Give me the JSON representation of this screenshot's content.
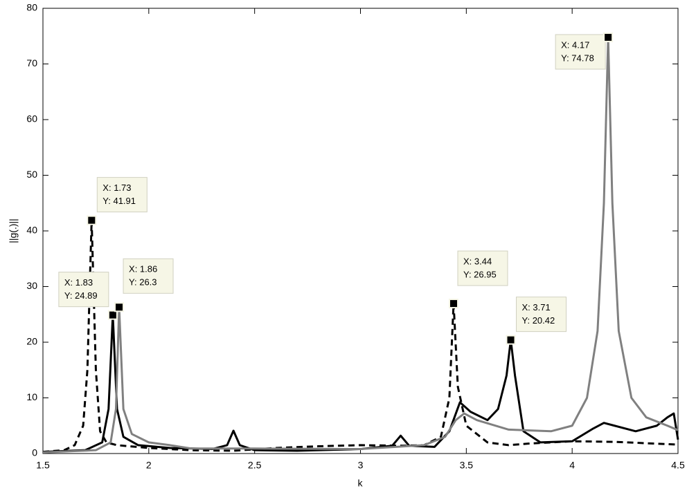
{
  "chart_data": {
    "type": "line",
    "xlabel": "k",
    "ylabel": "||g(.)||",
    "xlim": [
      1.5,
      4.5
    ],
    "xticks": [
      1.5,
      2,
      2.5,
      3,
      3.5,
      4,
      4.5
    ],
    "ylim": [
      0,
      80
    ],
    "yticks": [
      0,
      10,
      20,
      30,
      40,
      50,
      60,
      70,
      80
    ],
    "series": [
      {
        "color": "#000000",
        "dash": true,
        "x": [
          1.5,
          1.6,
          1.65,
          1.69,
          1.71,
          1.73,
          1.75,
          1.77,
          1.8,
          1.85,
          2.0,
          2.2,
          2.4,
          2.6,
          2.8,
          3.0,
          3.2,
          3.3,
          3.38,
          3.42,
          3.44,
          3.46,
          3.5,
          3.6,
          3.7,
          3.8,
          4.0,
          4.2,
          4.5
        ],
        "values": [
          0.3,
          0.6,
          1.5,
          5,
          15,
          41.91,
          15,
          4,
          2,
          1.5,
          1.0,
          0.6,
          0.5,
          1.0,
          1.3,
          1.5,
          1.4,
          1.5,
          3,
          10,
          26.95,
          12,
          5,
          2,
          1.5,
          1.8,
          2.2,
          2.1,
          1.6
        ]
      },
      {
        "color": "#000000",
        "dash": false,
        "x": [
          1.5,
          1.7,
          1.78,
          1.81,
          1.83,
          1.85,
          1.88,
          1.95,
          2.1,
          2.3,
          2.37,
          2.4,
          2.43,
          2.5,
          2.7,
          3.0,
          3.15,
          3.19,
          3.23,
          3.35,
          3.42,
          3.47,
          3.52,
          3.6,
          3.65,
          3.69,
          3.71,
          3.73,
          3.77,
          3.85,
          4.0,
          4.1,
          4.15,
          4.2,
          4.3,
          4.4,
          4.45,
          4.48,
          4.5
        ],
        "values": [
          0.3,
          0.6,
          2,
          8,
          24.89,
          8,
          3,
          1.5,
          1.0,
          0.8,
          1.5,
          4.1,
          1.5,
          0.6,
          0.5,
          0.8,
          1.4,
          3.2,
          1.4,
          1.2,
          4,
          9.2,
          7.5,
          6,
          8,
          14,
          20.42,
          14,
          4,
          2.0,
          2.2,
          4.5,
          5.5,
          5,
          4,
          5,
          6.5,
          7.2,
          2.5
        ]
      },
      {
        "color": "#808080",
        "dash": false,
        "x": [
          1.5,
          1.75,
          1.82,
          1.845,
          1.86,
          1.88,
          1.92,
          2.0,
          2.1,
          2.2,
          2.5,
          3.0,
          3.3,
          3.4,
          3.45,
          3.49,
          3.55,
          3.7,
          3.9,
          4.0,
          4.07,
          4.12,
          4.15,
          4.17,
          4.19,
          4.22,
          4.28,
          4.35,
          4.45,
          4.5
        ],
        "values": [
          0.2,
          0.6,
          2,
          8,
          26.3,
          8,
          3.5,
          2.0,
          1.5,
          0.9,
          0.9,
          0.8,
          1.5,
          3,
          6,
          7.2,
          6,
          4.3,
          4,
          5,
          10,
          22,
          45,
          74.78,
          45,
          22,
          10,
          6.5,
          5,
          4.2
        ]
      }
    ],
    "datatips": [
      {
        "x": 1.73,
        "y": 41.91,
        "label_x": "X: 1.73",
        "label_y": "Y: 41.91"
      },
      {
        "x": 1.83,
        "y": 24.89,
        "label_x": "X: 1.83",
        "label_y": "Y: 24.89"
      },
      {
        "x": 1.86,
        "y": 26.3,
        "label_x": "X: 1.86",
        "label_y": "Y: 26.3"
      },
      {
        "x": 3.44,
        "y": 26.95,
        "label_x": "X: 3.44",
        "label_y": "Y: 26.95"
      },
      {
        "x": 3.71,
        "y": 20.42,
        "label_x": "X: 3.71",
        "label_y": "Y: 20.42"
      },
      {
        "x": 4.17,
        "y": 74.78,
        "label_x": "X: 4.17",
        "label_y": "Y: 74.78"
      }
    ]
  }
}
